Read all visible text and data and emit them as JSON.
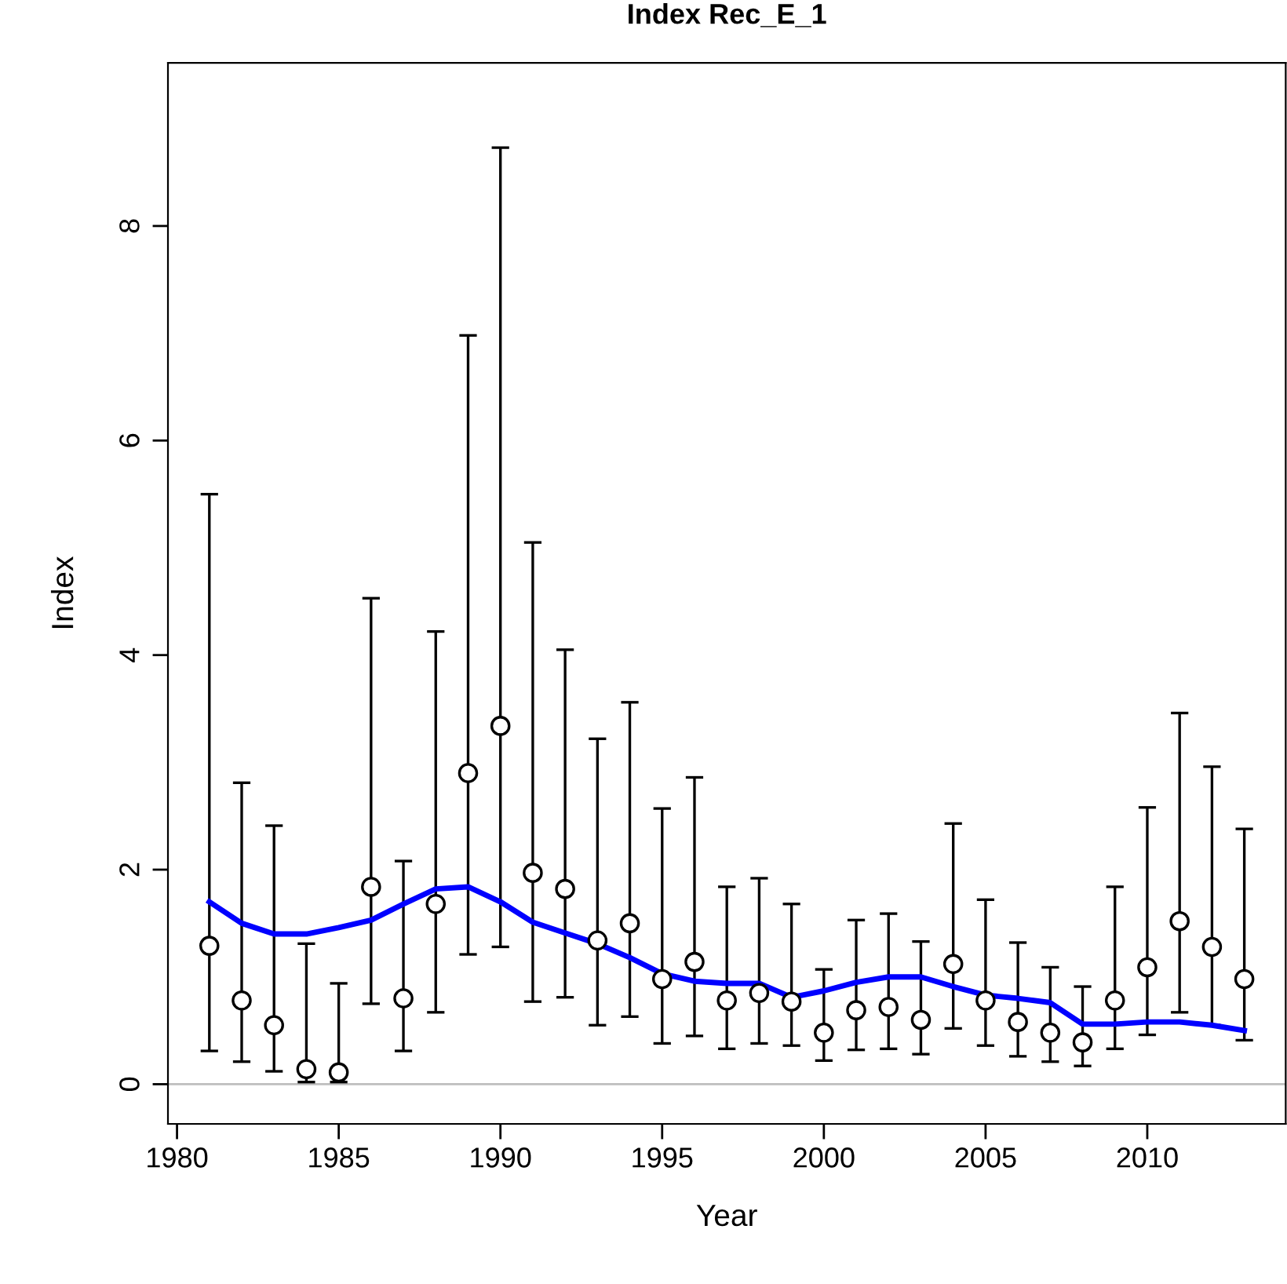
{
  "chart_data": {
    "type": "scatter",
    "title": "Index Rec_E_1",
    "xlabel": "Year",
    "ylabel": "Index",
    "x": [
      1981,
      1982,
      1983,
      1984,
      1985,
      1986,
      1987,
      1988,
      1989,
      1990,
      1991,
      1992,
      1993,
      1994,
      1995,
      1996,
      1997,
      1998,
      1999,
      2000,
      2001,
      2002,
      2003,
      2004,
      2005,
      2006,
      2007,
      2008,
      2009,
      2010,
      2011,
      2012,
      2013
    ],
    "series": [
      {
        "color": "#000000",
        "marker": "circle",
        "values": [
          1.29,
          0.78,
          0.55,
          0.14,
          0.11,
          1.84,
          0.8,
          1.68,
          2.9,
          3.34,
          1.97,
          1.82,
          1.34,
          1.5,
          0.98,
          1.14,
          0.78,
          0.85,
          0.77,
          0.48,
          0.69,
          0.72,
          0.6,
          1.12,
          0.78,
          0.58,
          0.48,
          0.39,
          0.78,
          1.09,
          1.52,
          1.28,
          0.98
        ],
        "errors": [
          [
            0.31,
            5.5
          ],
          [
            0.21,
            2.81
          ],
          [
            0.12,
            2.41
          ],
          [
            0.02,
            1.31
          ],
          [
            0.02,
            0.94
          ],
          [
            0.75,
            4.53
          ],
          [
            0.31,
            2.08
          ],
          [
            0.67,
            4.22
          ],
          [
            1.21,
            6.98
          ],
          [
            1.28,
            8.73
          ],
          [
            0.77,
            5.05
          ],
          [
            0.81,
            4.05
          ],
          [
            0.55,
            3.22
          ],
          [
            0.63,
            3.56
          ],
          [
            0.38,
            2.57
          ],
          [
            0.45,
            2.86
          ],
          [
            0.33,
            1.84
          ],
          [
            0.38,
            1.92
          ],
          [
            0.36,
            1.68
          ],
          [
            0.22,
            1.07
          ],
          [
            0.32,
            1.53
          ],
          [
            0.33,
            1.59
          ],
          [
            0.28,
            1.33
          ],
          [
            0.52,
            2.43
          ],
          [
            0.36,
            1.72
          ],
          [
            0.26,
            1.32
          ],
          [
            0.21,
            1.09
          ],
          [
            0.17,
            0.91
          ],
          [
            0.33,
            1.84
          ],
          [
            0.46,
            2.58
          ],
          [
            0.67,
            3.46
          ],
          [
            0.55,
            2.96
          ],
          [
            0.41,
            2.38
          ]
        ]
      },
      {
        "type": "line",
        "color": "#0000ff",
        "line_style": "solid",
        "values": [
          1.7,
          1.5,
          1.4,
          1.4,
          1.46,
          1.53,
          1.68,
          1.82,
          1.84,
          1.7,
          1.51,
          1.41,
          1.31,
          1.18,
          1.03,
          0.96,
          0.94,
          0.94,
          0.81,
          0.87,
          0.95,
          1.0,
          1.0,
          0.91,
          0.83,
          0.8,
          0.76,
          0.56,
          0.56,
          0.58,
          0.58,
          0.55,
          0.5
        ]
      }
    ],
    "ref_lines": [
      {
        "axis": "y",
        "value": 0,
        "color": "#bebebe"
      }
    ],
    "xlim": [
      1979.72,
      2014.28
    ],
    "xticks": [
      1980,
      1985,
      1990,
      1995,
      2000,
      2005,
      2010
    ],
    "ylim": [
      -0.37,
      9.52
    ],
    "yticks": [
      0,
      2,
      4,
      6,
      8
    ],
    "grid": false
  }
}
